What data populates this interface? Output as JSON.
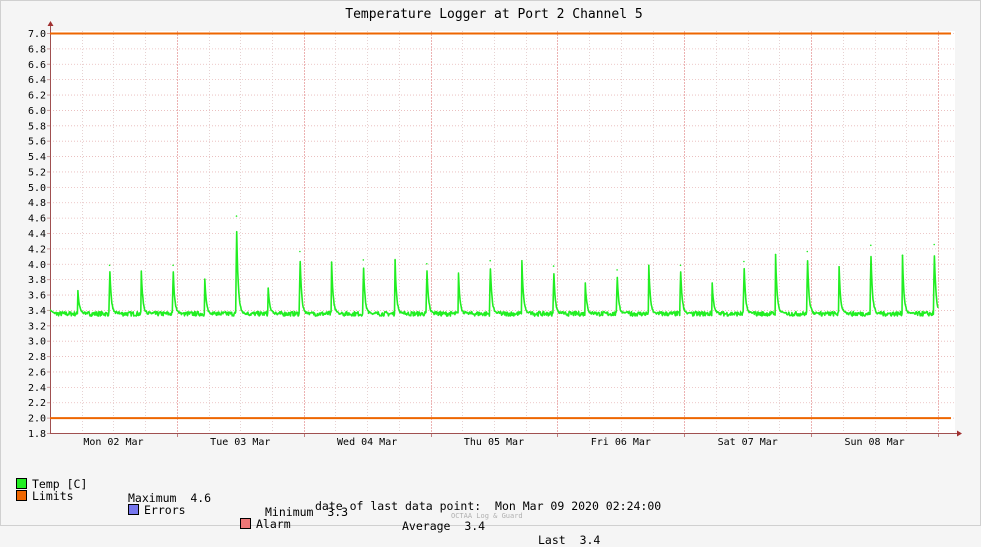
{
  "chart_data": {
    "type": "line",
    "title": "Temperature Logger at Port 2 Channel 5",
    "ylim": [
      1.8,
      7.0
    ],
    "yticks": [
      "1.8",
      "2.0",
      "2.2",
      "2.4",
      "2.6",
      "2.8",
      "3.0",
      "3.2",
      "3.4",
      "3.6",
      "3.8",
      "4.0",
      "4.2",
      "4.4",
      "4.6",
      "4.8",
      "5.0",
      "5.2",
      "5.4",
      "5.6",
      "5.8",
      "6.0",
      "6.2",
      "6.4",
      "6.6",
      "6.8",
      "7.0"
    ],
    "xlim": [
      0,
      7
    ],
    "xticks": [
      {
        "label": "Mon 02 Mar",
        "x": 0.5
      },
      {
        "label": "Tue 03 Mar",
        "x": 1.5
      },
      {
        "label": "Wed 04 Mar",
        "x": 2.5
      },
      {
        "label": "Thu 05 Mar",
        "x": 3.5
      },
      {
        "label": "Fri 06 Mar",
        "x": 4.5
      },
      {
        "label": "Sat 07 Mar",
        "x": 5.5
      },
      {
        "label": "Sun 08 Mar",
        "x": 6.5
      }
    ],
    "grid": true,
    "baseline": 3.35,
    "series": [
      {
        "name": "Temp [C]",
        "color": "#22ee22",
        "peaks": [
          {
            "x": 0.22,
            "y": 3.65
          },
          {
            "x": 0.47,
            "y": 3.98
          },
          {
            "x": 0.72,
            "y": 3.9
          },
          {
            "x": 0.97,
            "y": 3.98
          },
          {
            "x": 1.22,
            "y": 3.8
          },
          {
            "x": 1.47,
            "y": 4.62
          },
          {
            "x": 1.72,
            "y": 3.68
          },
          {
            "x": 1.97,
            "y": 4.16
          },
          {
            "x": 2.22,
            "y": 4.02
          },
          {
            "x": 2.47,
            "y": 4.05
          },
          {
            "x": 2.72,
            "y": 4.04
          },
          {
            "x": 2.97,
            "y": 4.0
          },
          {
            "x": 3.22,
            "y": 3.88
          },
          {
            "x": 3.47,
            "y": 4.04
          },
          {
            "x": 3.72,
            "y": 4.04
          },
          {
            "x": 3.97,
            "y": 3.97
          },
          {
            "x": 4.22,
            "y": 3.75
          },
          {
            "x": 4.47,
            "y": 3.92
          },
          {
            "x": 4.72,
            "y": 3.98
          },
          {
            "x": 4.97,
            "y": 3.98
          },
          {
            "x": 5.22,
            "y": 3.75
          },
          {
            "x": 5.47,
            "y": 4.03
          },
          {
            "x": 5.72,
            "y": 4.12
          },
          {
            "x": 5.97,
            "y": 4.16
          },
          {
            "x": 6.22,
            "y": 3.96
          },
          {
            "x": 6.47,
            "y": 4.24
          },
          {
            "x": 6.72,
            "y": 4.11
          },
          {
            "x": 6.97,
            "y": 4.25
          }
        ]
      },
      {
        "name": "Limits",
        "color": "#ee6600",
        "values": [
          7.0,
          2.0
        ]
      }
    ]
  },
  "legend": {
    "temp_label": "Temp [C]",
    "max_label": "Maximum",
    "max_value": "4.6",
    "min_label": "Minimum",
    "min_value": "3.3",
    "avg_label": "Average",
    "avg_value": "3.4",
    "last_label": "Last",
    "last_value": "3.4",
    "limits_label": "Limits",
    "errors_label": "Errors",
    "alarm_label": "Alarm",
    "colors": {
      "temp": "#22ee22",
      "limits": "#ee6600",
      "errors": "#7777ee",
      "alarm": "#ee7777"
    }
  },
  "footer": {
    "last_point_label": "date of last data point:",
    "last_point_value": "Mon Mar 09 2020 02:24:00",
    "credit": "OCTAA Log & Guard"
  }
}
